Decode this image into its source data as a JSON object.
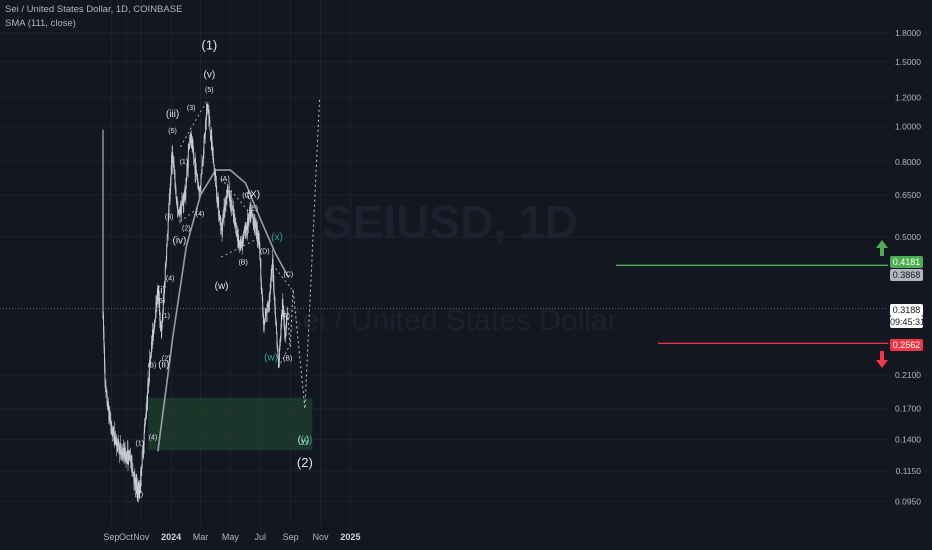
{
  "header": {
    "symbol_line": "Sei / United States Dollar, 1D, COINBASE",
    "indicator_line": "SMA (111, close)"
  },
  "watermark": {
    "ticker": "SEIUSD, 1D",
    "name": "Sei / United States Dollar"
  },
  "colors": {
    "background": "#131722",
    "candle": "#c8cbd3",
    "sma": "#b2b5be",
    "green_line": "#4caf50",
    "red_line": "#f23645",
    "zone_fill": "#1e3b2c",
    "cyan_label": "#26a69a"
  },
  "price_axis": {
    "ticks": [
      "1.8000",
      "1.5000",
      "1.2000",
      "1.0000",
      "0.8000",
      "0.6500",
      "0.5000",
      "0.4181",
      "0.3868",
      "0.3188",
      "0.2562",
      "0.2100",
      "0.1700",
      "0.1400",
      "0.1150",
      "0.0950"
    ],
    "scale": "log"
  },
  "time_axis": {
    "ticks": [
      "Sep",
      "Oct",
      "Nov",
      "2024",
      "Mar",
      "May",
      "Jul",
      "Sep",
      "Nov",
      "2025"
    ]
  },
  "price_badges": {
    "target": "0.4181",
    "sma_value": "0.3868",
    "last_price": "0.3188",
    "countdown": "09:45:31",
    "stop": "0.2562"
  },
  "wave_labels": {
    "w1": "(1)",
    "v": "(v)",
    "p5a": "(5)",
    "p3a": "(3)",
    "iii": "(iii)",
    "p5b": "(5)",
    "p1a": "(1)",
    "p3b": "(3)",
    "p2a": "(2)",
    "p4a": "(4)",
    "iv": "(iv)",
    "p4b": "(4)",
    "i": "(i)",
    "p5c": "(5)",
    "p1b": "(1)",
    "p3c": "(3)",
    "ii": "(ii)",
    "p2b": "(2)",
    "p4c": "(4)",
    "p1c": "(1)",
    "p2c": "(2)",
    "A1": "(A)",
    "C1": "(C)",
    "X": "(X)",
    "E": "(E)",
    "D": "(D)",
    "B1": "(B)",
    "w_": "(w)",
    "x_c": "(x)",
    "w_c": "(w)",
    "C2": "(C)",
    "A2": "(A)",
    "B2": "(B)",
    "y": "(y)",
    "y_c": "(y)",
    "w2": "(2)"
  },
  "chart_data": {
    "type": "candlestick",
    "title": "Sei / United States Dollar, 1D, COINBASE",
    "y_scale": "log",
    "ylim": [
      0.09,
      2.0
    ],
    "x_range": [
      "2023-08-15",
      "2025-02-15"
    ],
    "series": [
      {
        "name": "Sei / United States Dollar",
        "points": [
          [
            "2023-08-15",
            0.3
          ],
          [
            "2023-08-20",
            0.19
          ],
          [
            "2023-09-01",
            0.15
          ],
          [
            "2023-09-20",
            0.13
          ],
          [
            "2023-10-10",
            0.125
          ],
          [
            "2023-10-20",
            0.105
          ],
          [
            "2023-10-28",
            0.1
          ],
          [
            "2023-11-03",
            0.125
          ],
          [
            "2023-11-20",
            0.24
          ],
          [
            "2023-12-05",
            0.36
          ],
          [
            "2023-12-12",
            0.27
          ],
          [
            "2023-12-25",
            0.52
          ],
          [
            "2024-01-03",
            0.85
          ],
          [
            "2024-01-15",
            0.57
          ],
          [
            "2024-01-30",
            0.66
          ],
          [
            "2024-02-08",
            0.95
          ],
          [
            "2024-02-28",
            0.66
          ],
          [
            "2024-03-15",
            1.15
          ],
          [
            "2024-03-28",
            0.78
          ],
          [
            "2024-04-12",
            0.52
          ],
          [
            "2024-04-25",
            0.68
          ],
          [
            "2024-05-20",
            0.47
          ],
          [
            "2024-06-12",
            0.58
          ],
          [
            "2024-06-28",
            0.5
          ],
          [
            "2024-07-08",
            0.28
          ],
          [
            "2024-07-20",
            0.35
          ],
          [
            "2024-07-26",
            0.42
          ],
          [
            "2024-08-07",
            0.22
          ],
          [
            "2024-08-15",
            0.33
          ],
          [
            "2024-08-20",
            0.27
          ],
          [
            "2024-08-25",
            0.3188
          ]
        ]
      },
      {
        "name": "SMA (111, close)",
        "points": [
          [
            "2023-12-05",
            0.13
          ],
          [
            "2024-01-05",
            0.27
          ],
          [
            "2024-02-01",
            0.47
          ],
          [
            "2024-03-01",
            0.65
          ],
          [
            "2024-04-01",
            0.76
          ],
          [
            "2024-05-01",
            0.76
          ],
          [
            "2024-06-01",
            0.7
          ],
          [
            "2024-07-01",
            0.56
          ],
          [
            "2024-08-01",
            0.45
          ],
          [
            "2024-08-28",
            0.3868
          ]
        ]
      },
      {
        "name": "projection",
        "points": [
          [
            "2024-08-25",
            0.32
          ],
          [
            "2024-08-31",
            0.25
          ],
          [
            "2024-09-06",
            0.36
          ],
          [
            "2024-09-30",
            0.17
          ],
          [
            "2024-10-30",
            1.2
          ]
        ]
      }
    ],
    "levels": {
      "target": 0.4181,
      "stop": 0.2562,
      "last": 0.3188
    },
    "zone": {
      "from": "2023-11-15",
      "to": "2024-10-15",
      "low": 0.131,
      "high": 0.182
    },
    "grid": true,
    "legend": "top-left"
  }
}
